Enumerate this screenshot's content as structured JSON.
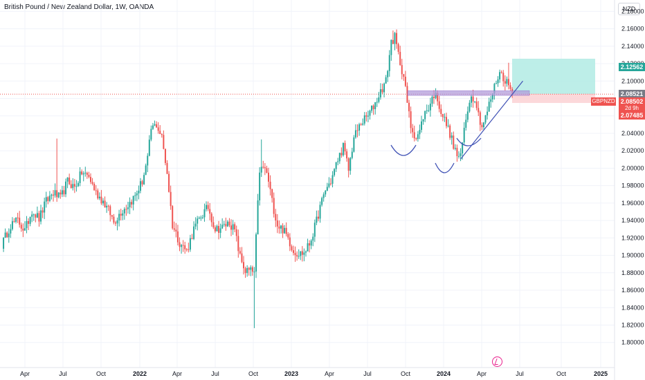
{
  "header": {
    "title": "British Pound / New Zealand Dollar, 1W, OANDA"
  },
  "axis_currency": "NZD",
  "chart_data": {
    "type": "candlestick",
    "symbol": "GBPNZD",
    "timeframe": "1W",
    "y_range": [
      1.79,
      2.185
    ],
    "y_ticks": [
      "2.18000",
      "2.16000",
      "2.14000",
      "2.12000",
      "2.10000",
      "2.08000",
      "2.06000",
      "2.04000",
      "2.02000",
      "2.00000",
      "1.98000",
      "1.96000",
      "1.94000",
      "1.92000",
      "1.90000",
      "1.88000",
      "1.86000",
      "1.84000",
      "1.82000",
      "1.80000"
    ],
    "x_ticks": [
      "Apr",
      "Jul",
      "Oct",
      "2022",
      "Apr",
      "Jul",
      "Oct",
      "2023",
      "Apr",
      "Jul",
      "Oct",
      "2024",
      "Apr",
      "Jul",
      "Oct",
      "2025"
    ],
    "grid": true,
    "anchors": [
      [
        0,
        1.912
      ],
      [
        5,
        1.935
      ],
      [
        9,
        1.94
      ],
      [
        13,
        1.928
      ],
      [
        17,
        1.952
      ],
      [
        21,
        1.942
      ],
      [
        25,
        1.962
      ],
      [
        29,
        1.972
      ],
      [
        33,
        1.965
      ],
      [
        37,
        1.985
      ],
      [
        41,
        1.978
      ],
      [
        45,
        1.995
      ],
      [
        49,
        1.99
      ],
      [
        53,
        1.972
      ],
      [
        57,
        1.962
      ],
      [
        61,
        1.948
      ],
      [
        63,
        1.938
      ],
      [
        67,
        1.95
      ],
      [
        71,
        1.958
      ],
      [
        75,
        1.968
      ],
      [
        79,
        1.985
      ],
      [
        82,
        2.01
      ],
      [
        84,
        2.045
      ],
      [
        87,
        2.05
      ],
      [
        90,
        2.035
      ],
      [
        93,
        1.995
      ],
      [
        96,
        1.935
      ],
      [
        100,
        1.915
      ],
      [
        104,
        1.905
      ],
      [
        108,
        1.93
      ],
      [
        112,
        1.945
      ],
      [
        116,
        1.955
      ],
      [
        120,
        1.93
      ],
      [
        124,
        1.932
      ],
      [
        128,
        1.938
      ],
      [
        131,
        1.928
      ],
      [
        134,
        1.898
      ],
      [
        137,
        1.882
      ],
      [
        140,
        1.882
      ],
      [
        142,
        1.88
      ],
      [
        145,
        1.998
      ],
      [
        148,
        2.0
      ],
      [
        150,
        1.985
      ],
      [
        152,
        1.962
      ],
      [
        155,
        1.935
      ],
      [
        158,
        1.93
      ],
      [
        161,
        1.92
      ],
      [
        164,
        1.905
      ],
      [
        167,
        1.902
      ],
      [
        170,
        1.903
      ],
      [
        173,
        1.913
      ],
      [
        176,
        1.932
      ],
      [
        179,
        1.955
      ],
      [
        182,
        1.975
      ],
      [
        185,
        1.985
      ],
      [
        189,
        2.01
      ],
      [
        192,
        2.025
      ],
      [
        195,
        1.998
      ],
      [
        198,
        2.035
      ],
      [
        202,
        2.052
      ],
      [
        206,
        2.06
      ],
      [
        210,
        2.075
      ],
      [
        213,
        2.088
      ],
      [
        216,
        2.1
      ],
      [
        219,
        2.145
      ],
      [
        221,
        2.15
      ],
      [
        223,
        2.13
      ],
      [
        226,
        2.105
      ],
      [
        228,
        2.075
      ],
      [
        230,
        2.048
      ],
      [
        233,
        2.035
      ],
      [
        235,
        2.042
      ],
      [
        237,
        2.06
      ],
      [
        240,
        2.07
      ],
      [
        243,
        2.085
      ],
      [
        245,
        2.08
      ],
      [
        247,
        2.065
      ],
      [
        250,
        2.05
      ],
      [
        252,
        2.04
      ],
      [
        254,
        2.025
      ],
      [
        256,
        2.015
      ],
      [
        258,
        2.012
      ],
      [
        260,
        2.045
      ],
      [
        263,
        2.08
      ],
      [
        266,
        2.082
      ],
      [
        268,
        2.062
      ],
      [
        270,
        2.048
      ],
      [
        272,
        2.058
      ],
      [
        275,
        2.08
      ],
      [
        278,
        2.1
      ],
      [
        280,
        2.11
      ],
      [
        283,
        2.102
      ],
      [
        285,
        2.095
      ],
      [
        287,
        2.086
      ]
    ],
    "annotations": {
      "long_position": {
        "entry": 2.08521,
        "target": 2.12562,
        "stop": 2.07485
      },
      "current_price": 2.08502,
      "resistance_zone": [
        2.0835,
        2.089
      ],
      "trendline": [
        [
          258,
          2.0105
        ],
        [
          293,
          2.1
        ]
      ],
      "patterns": [
        "inverse head and shoulders (left shoulder, head, right shoulder arcs)"
      ]
    },
    "price_labels": {
      "target": "2.12562",
      "entry": "2.08521",
      "current": "2.08502",
      "symbol": "GBPNZD",
      "countdown": "2d 9h",
      "stop": "2.07485"
    }
  }
}
